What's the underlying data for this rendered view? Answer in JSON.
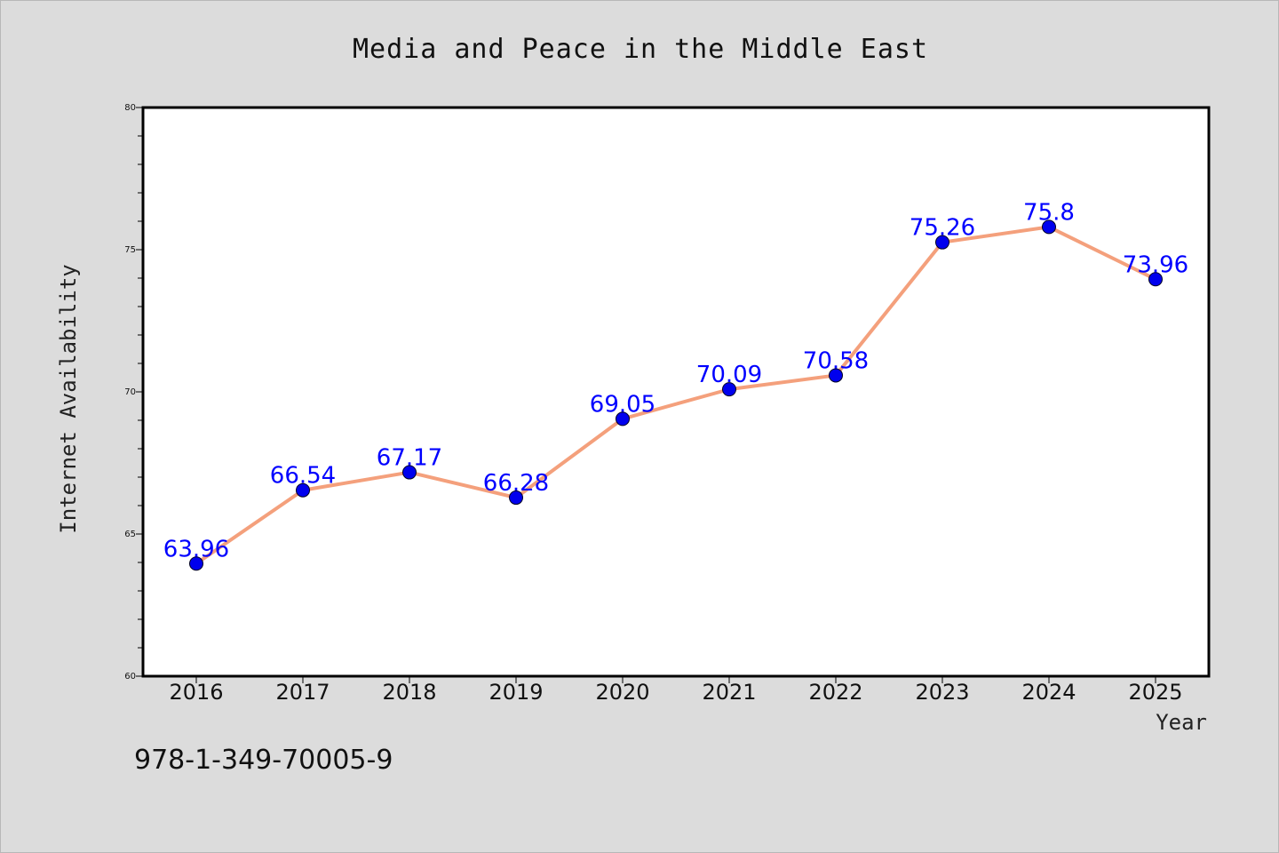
{
  "chart_data": {
    "type": "line",
    "title": "Media and Peace in the Middle East",
    "xlabel": "Year",
    "ylabel": "Internet Availability",
    "categories": [
      "2016",
      "2017",
      "2018",
      "2019",
      "2020",
      "2021",
      "2022",
      "2023",
      "2024",
      "2025"
    ],
    "series": [
      {
        "values": [
          63.96,
          66.54,
          67.17,
          66.28,
          69.05,
          70.09,
          70.58,
          75.26,
          75.8,
          73.96
        ],
        "data_labels": [
          "63.96",
          "66.54",
          "67.17",
          "66.28",
          "69.05",
          "70.09",
          "70.58",
          "75.26",
          "75.8",
          "73.96"
        ],
        "line_color": "#f4a07c",
        "marker_color": "#0000ee",
        "label_color": "#0000ff"
      }
    ],
    "ylim": [
      60,
      80
    ],
    "yticks": [
      "60",
      "65",
      "70",
      "75",
      "80"
    ],
    "grid": false,
    "legend": "none"
  },
  "footer": {
    "isbn": "978-1-349-70005-9"
  },
  "colors": {
    "background": "#dcdcdc",
    "plot_background": "#ffffff",
    "axis": "#000000"
  }
}
